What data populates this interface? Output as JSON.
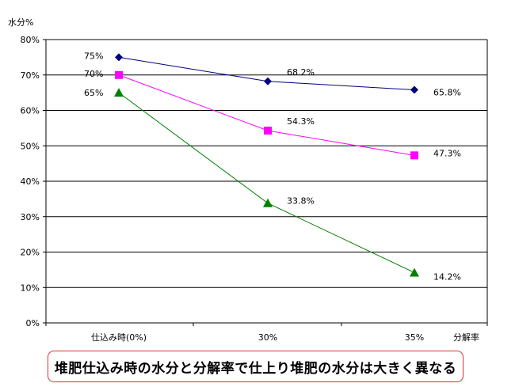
{
  "chart_data": {
    "type": "line",
    "title": "",
    "ylabel": "水分%",
    "xlabel": "分解率",
    "ylim": [
      0,
      80
    ],
    "yticks": [
      "0%",
      "10%",
      "20%",
      "30%",
      "40%",
      "50%",
      "60%",
      "70%",
      "80%"
    ],
    "categories": [
      "仕込み時(0%)",
      "30%",
      "35%"
    ],
    "grid": true,
    "series": [
      {
        "values": [
          75,
          68.2,
          65.8
        ],
        "labels": [
          "75%",
          "68.2%",
          "65.8%"
        ],
        "color": "#000080",
        "marker": "diamond"
      },
      {
        "values": [
          70,
          54.3,
          47.3
        ],
        "labels": [
          "70%",
          "54.3%",
          "47.3%"
        ],
        "color": "#ff00ff",
        "marker": "square"
      },
      {
        "values": [
          65,
          33.8,
          14.2
        ],
        "labels": [
          "65%",
          "33.8%",
          "14.2%"
        ],
        "color": "#008000",
        "marker": "triangle"
      }
    ]
  },
  "caption": "堆肥仕込み時の水分と分解率で仕上り堆肥の水分は大きく異なる"
}
